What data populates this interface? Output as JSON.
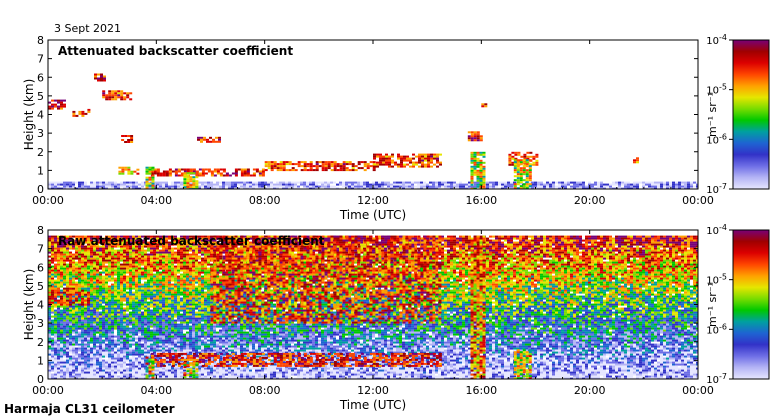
{
  "date": "3 Sept 2021",
  "station": "Harmaja CL31 ceilometer",
  "colors": {
    "colormap": [
      "#e6e6ff",
      "#b4b4f5",
      "#6e6ee6",
      "#3232c8",
      "#1e64d2",
      "#00a0a0",
      "#00c800",
      "#78dc00",
      "#e6e600",
      "#ffa000",
      "#ff4600",
      "#dc0000",
      "#a00000",
      "#780078"
    ]
  },
  "colorbar": {
    "ticks": [
      "10^-4",
      "10^-5",
      "10^-6",
      "10^-7"
    ],
    "unit_label": "m⁻¹ sr⁻¹"
  },
  "chart_data": [
    {
      "type": "heatmap",
      "title": "Attenuated backscatter coefficient",
      "xlabel": "Time (UTC)",
      "ylabel": "Height (km)",
      "xlim": [
        0,
        24
      ],
      "ylim": [
        0,
        8
      ],
      "x_tick_labels": [
        "00:00",
        "04:00",
        "08:00",
        "12:00",
        "16:00",
        "20:00",
        "00:00"
      ],
      "y_tick_labels": [
        "0",
        "1",
        "2",
        "3",
        "4",
        "5",
        "6",
        "7",
        "8"
      ],
      "color_scale": "log10, 1e-7 to 1e-4 m-1 sr-1",
      "features": [
        {
          "name": "surface aerosol layer",
          "t_start": 0.0,
          "t_end": 24.0,
          "h_bottom": 0.0,
          "h_top": 0.4,
          "log_beta": -6.7
        },
        {
          "name": "cloud layer",
          "t_start": 0.0,
          "t_end": 0.6,
          "h_bottom": 4.3,
          "h_top": 4.8,
          "log_beta": -4.6
        },
        {
          "name": "cloud layer",
          "t_start": 0.9,
          "t_end": 1.5,
          "h_bottom": 3.9,
          "h_top": 4.3,
          "log_beta": -4.8
        },
        {
          "name": "cloud layer",
          "t_start": 1.7,
          "t_end": 2.1,
          "h_bottom": 5.8,
          "h_top": 6.2,
          "log_beta": -4.7
        },
        {
          "name": "cloud layer",
          "t_start": 2.0,
          "t_end": 3.1,
          "h_bottom": 4.8,
          "h_top": 5.3,
          "log_beta": -4.8
        },
        {
          "name": "cloud layer",
          "t_start": 2.7,
          "t_end": 3.1,
          "h_bottom": 2.5,
          "h_top": 2.9,
          "log_beta": -4.6
        },
        {
          "name": "cloud layer",
          "t_start": 2.6,
          "t_end": 3.3,
          "h_bottom": 0.8,
          "h_top": 1.2,
          "log_beta": -5.2
        },
        {
          "name": "cloud layer",
          "t_start": 5.5,
          "t_end": 6.3,
          "h_bottom": 2.5,
          "h_top": 2.8,
          "log_beta": -4.6
        },
        {
          "name": "cloud layer",
          "t_start": 3.8,
          "t_end": 8.0,
          "h_bottom": 0.7,
          "h_top": 1.1,
          "log_beta": -4.7
        },
        {
          "name": "cloud layer",
          "t_start": 8.0,
          "t_end": 12.0,
          "h_bottom": 1.0,
          "h_top": 1.5,
          "log_beta": -4.8
        },
        {
          "name": "cloud layer",
          "t_start": 12.0,
          "t_end": 14.5,
          "h_bottom": 1.2,
          "h_top": 1.9,
          "log_beta": -4.8
        },
        {
          "name": "cloud layer",
          "t_start": 15.5,
          "t_end": 16.0,
          "h_bottom": 2.6,
          "h_top": 3.1,
          "log_beta": -4.6
        },
        {
          "name": "cloud layer",
          "t_start": 16.0,
          "t_end": 16.2,
          "h_bottom": 4.4,
          "h_top": 4.6,
          "log_beta": -4.6
        },
        {
          "name": "cloud layer",
          "t_start": 17.0,
          "t_end": 18.0,
          "h_bottom": 1.3,
          "h_top": 2.0,
          "log_beta": -4.8
        },
        {
          "name": "cloud layer",
          "t_start": 21.6,
          "t_end": 21.8,
          "h_bottom": 1.4,
          "h_top": 1.7,
          "log_beta": -5.0
        },
        {
          "name": "precipitation streak",
          "t_start": 3.6,
          "t_end": 3.9,
          "h_bottom": 0.0,
          "h_top": 1.2,
          "log_beta": -5.3
        },
        {
          "name": "precipitation streak",
          "t_start": 5.0,
          "t_end": 5.5,
          "h_bottom": 0.0,
          "h_top": 0.9,
          "log_beta": -5.3
        },
        {
          "name": "precipitation streak",
          "t_start": 15.6,
          "t_end": 16.1,
          "h_bottom": 0.0,
          "h_top": 2.0,
          "log_beta": -5.3
        },
        {
          "name": "precipitation streak",
          "t_start": 17.2,
          "t_end": 17.8,
          "h_bottom": 0.0,
          "h_top": 1.6,
          "log_beta": -5.3
        }
      ]
    },
    {
      "type": "heatmap",
      "title": "Raw attenuated backscatter coefficient",
      "xlabel": "Time (UTC)",
      "ylabel": "Height (km)",
      "xlim": [
        0,
        24
      ],
      "ylim": [
        0,
        8
      ],
      "x_tick_labels": [
        "00:00",
        "04:00",
        "08:00",
        "12:00",
        "16:00",
        "20:00",
        "00:00"
      ],
      "y_tick_labels": [
        "0",
        "1",
        "2",
        "3",
        "4",
        "5",
        "6",
        "7",
        "8"
      ],
      "color_scale": "log10, 1e-7 to 1e-4 m-1 sr-1",
      "features": [
        {
          "name": "noisy background, strongest aloft",
          "t_start": 0.0,
          "t_end": 24.0,
          "h_bottom": 0.0,
          "h_top": 7.7,
          "log_beta": -5.5
        },
        {
          "name": "enhanced noise",
          "t_start": 6.0,
          "t_end": 14.5,
          "h_bottom": 3.0,
          "h_top": 7.7,
          "log_beta": -4.5
        },
        {
          "name": "cloud layer",
          "t_start": 0.0,
          "t_end": 1.5,
          "h_bottom": 4.0,
          "h_top": 4.9,
          "log_beta": -4.7
        },
        {
          "name": "cloud layer",
          "t_start": 3.8,
          "t_end": 14.5,
          "h_bottom": 0.7,
          "h_top": 1.4,
          "log_beta": -4.7
        },
        {
          "name": "precipitation streak",
          "t_start": 3.6,
          "t_end": 3.9,
          "h_bottom": 0.0,
          "h_top": 1.2,
          "log_beta": -5.2
        },
        {
          "name": "precipitation streak",
          "t_start": 5.0,
          "t_end": 5.5,
          "h_bottom": 0.0,
          "h_top": 0.9,
          "log_beta": -5.2
        },
        {
          "name": "precipitation streak",
          "t_start": 15.6,
          "t_end": 16.1,
          "h_bottom": 0.0,
          "h_top": 7.7,
          "log_beta": -4.8
        },
        {
          "name": "precipitation streak",
          "t_start": 17.2,
          "t_end": 17.8,
          "h_bottom": 0.0,
          "h_top": 1.6,
          "log_beta": -5.2
        }
      ]
    }
  ]
}
